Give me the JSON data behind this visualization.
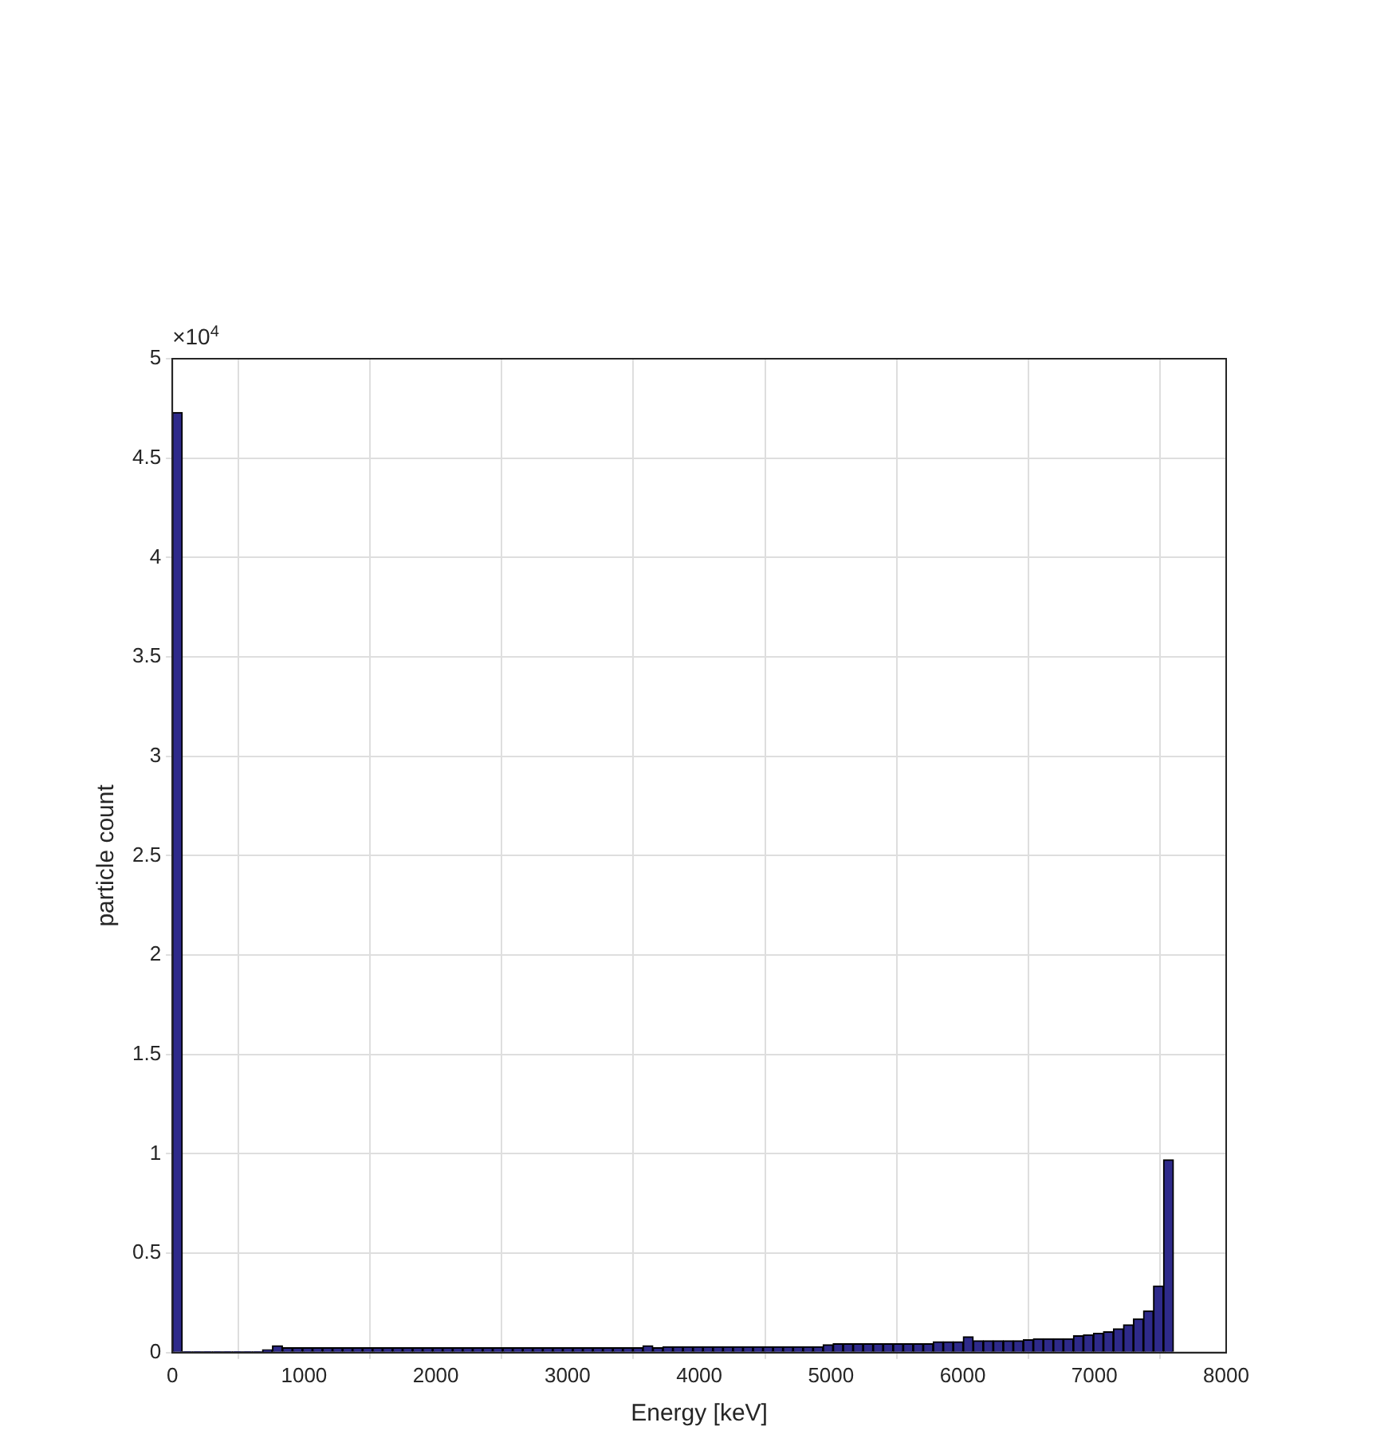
{
  "chart_data": {
    "type": "histogram",
    "xlabel": "Energy [keV]",
    "ylabel": "particle count",
    "annotations": [
      "×10$^{4}$"
    ],
    "bins": [
      0,
      76,
      152,
      228,
      304,
      380,
      456,
      532,
      608,
      684,
      760,
      836,
      912,
      988,
      1064,
      1140,
      1216,
      1292,
      1368,
      1444,
      1520,
      1596,
      1672,
      1748,
      1824,
      1900,
      1976,
      2052,
      2128,
      2204,
      2280,
      2356,
      2432,
      2508,
      2584,
      2660,
      2736,
      2812,
      2888,
      2964,
      3040,
      3116,
      3192,
      3268,
      3344,
      3420,
      3496,
      3572,
      3648,
      3724,
      3800,
      3876,
      3952,
      4028,
      4104,
      4180,
      4256,
      4332,
      4408,
      4484,
      4560,
      4636,
      4712,
      4788,
      4864,
      4940,
      5016,
      5092,
      5168,
      5244,
      5320,
      5396,
      5472,
      5548,
      5624,
      5700,
      5776,
      5852,
      5928,
      6004,
      6080,
      6156,
      6232,
      6308,
      6384,
      6460,
      6536,
      6612,
      6688,
      6764,
      6840,
      6916,
      6992,
      7068,
      7144,
      7220,
      7296,
      7372,
      7448,
      7524,
      7600
    ],
    "values": [
      4.73,
      0.005,
      0.005,
      0.005,
      0.005,
      0.005,
      0.005,
      0.005,
      0.005,
      0.015,
      0.035,
      0.025,
      0.025,
      0.025,
      0.025,
      0.025,
      0.025,
      0.025,
      0.025,
      0.025,
      0.025,
      0.025,
      0.025,
      0.025,
      0.025,
      0.025,
      0.025,
      0.025,
      0.025,
      0.025,
      0.025,
      0.025,
      0.025,
      0.025,
      0.025,
      0.025,
      0.025,
      0.025,
      0.025,
      0.025,
      0.025,
      0.025,
      0.025,
      0.025,
      0.025,
      0.025,
      0.025,
      0.035,
      0.025,
      0.03,
      0.03,
      0.03,
      0.03,
      0.03,
      0.03,
      0.03,
      0.03,
      0.03,
      0.03,
      0.03,
      0.03,
      0.03,
      0.03,
      0.03,
      0.03,
      0.04,
      0.045,
      0.045,
      0.045,
      0.045,
      0.045,
      0.045,
      0.045,
      0.045,
      0.045,
      0.045,
      0.055,
      0.055,
      0.055,
      0.08,
      0.06,
      0.06,
      0.06,
      0.06,
      0.06,
      0.065,
      0.07,
      0.07,
      0.07,
      0.07,
      0.085,
      0.09,
      0.098,
      0.105,
      0.12,
      0.14,
      0.17,
      0.21,
      0.335,
      0.97
    ],
    "color": "#2e2a8a",
    "xlim": [
      0,
      8000
    ],
    "xticks": [
      0,
      1000,
      2000,
      3000,
      4000,
      5000,
      6000,
      7000,
      8000
    ],
    "ylim": [
      0,
      5
    ],
    "yticks": [
      0,
      0.5,
      1,
      1.5,
      2,
      2.5,
      3,
      3.5,
      4,
      4.5,
      5
    ],
    "grid": true,
    "legend": false
  }
}
